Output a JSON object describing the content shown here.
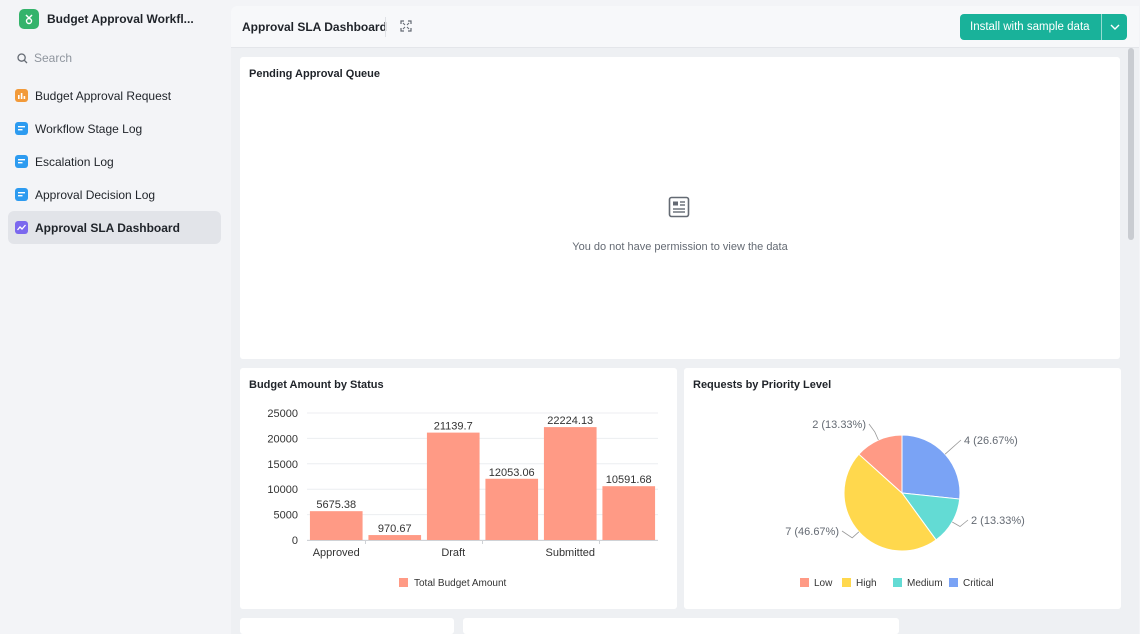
{
  "app": {
    "title": "Budget Approval Workfl...",
    "logo_icon": "app-logo-icon",
    "brand_color": "#34b36b"
  },
  "search": {
    "placeholder": "Search"
  },
  "sidebar": {
    "items": [
      {
        "label": "Budget Approval Request",
        "icon": "table-orange-icon",
        "color": "#f29a3a",
        "active": false
      },
      {
        "label": "Workflow Stage Log",
        "icon": "table-blue-icon",
        "color": "#2d9bf0",
        "active": false
      },
      {
        "label": "Escalation Log",
        "icon": "table-blue-icon",
        "color": "#2d9bf0",
        "active": false
      },
      {
        "label": "Approval Decision Log",
        "icon": "table-blue-icon",
        "color": "#2d9bf0",
        "active": false
      },
      {
        "label": "Approval SLA Dashboard",
        "icon": "dashboard-purple-icon",
        "color": "#7b68ee",
        "active": true
      }
    ]
  },
  "header": {
    "title": "Approval SLA Dashboard",
    "install_label": "Install with sample data",
    "accent_color": "#19b29a"
  },
  "cards": {
    "queue": {
      "title": "Pending Approval Queue",
      "empty_message": "You do not have permission to view the data"
    },
    "budget": {
      "title": "Budget Amount by Status"
    },
    "priority": {
      "title": "Requests by Priority Level"
    }
  },
  "chart_data": [
    {
      "type": "bar",
      "title": "Budget Amount by Status",
      "categories": [
        "Approved",
        "",
        "Draft",
        "",
        "Submitted",
        ""
      ],
      "tick_labels": [
        "Approved",
        "Draft",
        "Submitted"
      ],
      "series": [
        {
          "name": "Total Budget Amount",
          "values": [
            5675.38,
            970.67,
            21139.7,
            12053.06,
            22224.13,
            10591.68
          ],
          "color": "#ff9a85"
        }
      ],
      "data_labels": [
        "5675.38",
        "970.67",
        "21139.7",
        "12053.06",
        "22224.13",
        "10591.68"
      ],
      "yticks": [
        0,
        5000,
        10000,
        15000,
        20000,
        25000
      ],
      "ylim": [
        0,
        25000
      ],
      "grid": true,
      "legend": "bottom"
    },
    {
      "type": "pie",
      "title": "Requests by Priority Level",
      "slices": [
        {
          "label": "Low",
          "value": 2,
          "text": "2 (13.33%)",
          "color": "#ff9a85"
        },
        {
          "label": "High",
          "value": 7,
          "text": "7 (46.67%)",
          "color": "#ffd84d"
        },
        {
          "label": "Medium",
          "value": 2,
          "text": "2 (13.33%)",
          "color": "#63dbd4"
        },
        {
          "label": "Critical",
          "value": 4,
          "text": "4 (26.67%)",
          "color": "#7aa3f5"
        }
      ],
      "legend": "bottom"
    }
  ]
}
